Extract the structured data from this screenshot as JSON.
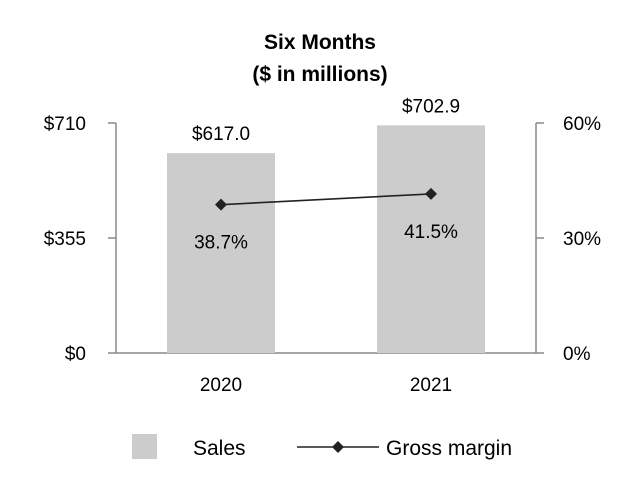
{
  "chart_data": {
    "type": "bar",
    "title": [
      "Six Months",
      "($ in millions)"
    ],
    "categories": [
      "2020",
      "2021"
    ],
    "series": [
      {
        "name": "Sales",
        "kind": "bar",
        "axis": "left",
        "values": [
          617.0,
          702.9
        ],
        "labels": [
          "$617.0",
          "$702.9"
        ],
        "color": "#cccccc"
      },
      {
        "name": "Gross margin",
        "kind": "line",
        "axis": "right",
        "marker": "diamond",
        "values": [
          38.7,
          41.5
        ],
        "labels": [
          "38.7%",
          "41.5%"
        ],
        "color": "#222222"
      }
    ],
    "y_left": {
      "ticks": [
        0,
        355,
        710
      ],
      "tick_labels": [
        "$0",
        "$355",
        "$710"
      ],
      "ylim": [
        0,
        710
      ]
    },
    "y_right": {
      "ticks": [
        0,
        30,
        60
      ],
      "tick_labels": [
        "0%",
        "30%",
        "60%"
      ],
      "ylim": [
        0,
        60
      ]
    },
    "grid": false,
    "legend": {
      "position": "bottom",
      "items": [
        "Sales",
        "Gross margin"
      ]
    }
  }
}
